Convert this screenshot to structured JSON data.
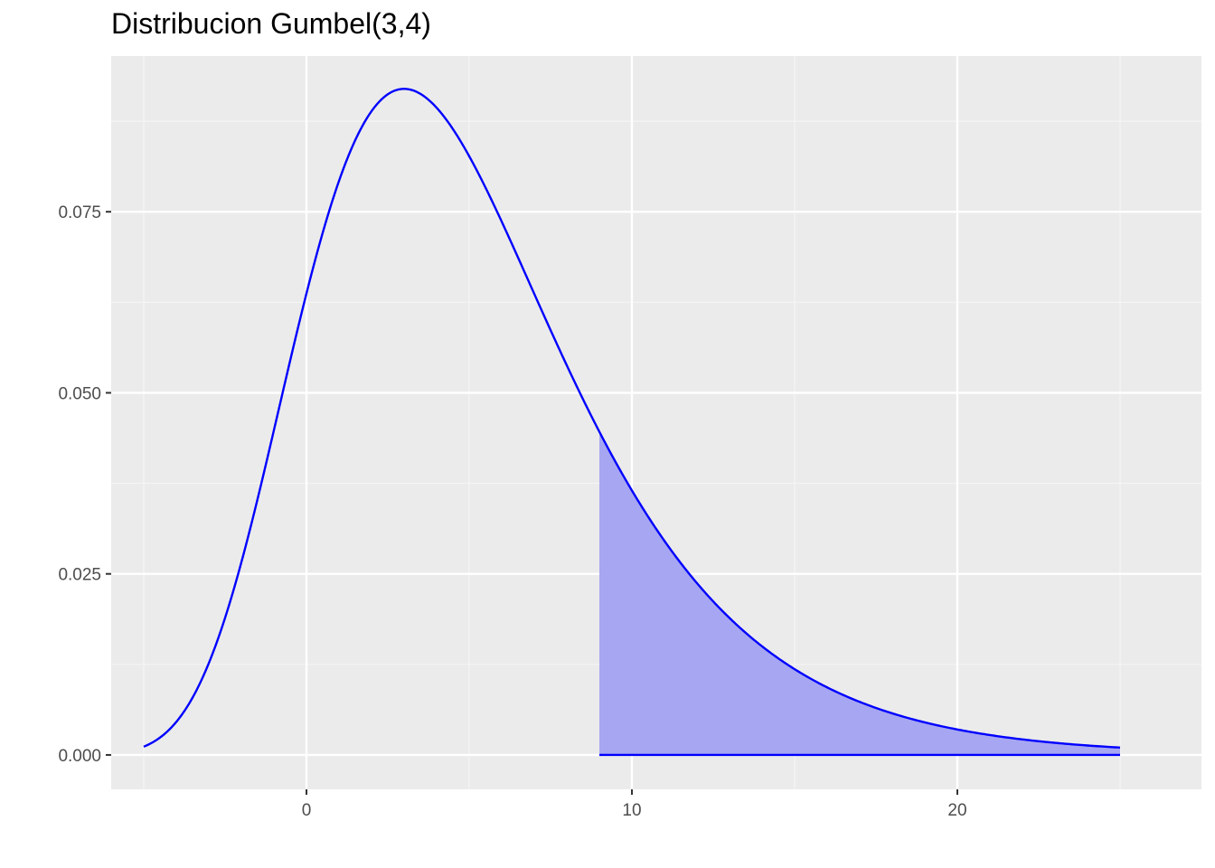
{
  "chart_data": {
    "type": "area",
    "title": "Distribucion Gumbel(3,4)",
    "xlabel": "",
    "ylabel": "",
    "xlim": [
      -6,
      27.5
    ],
    "ylim": [
      -0.00475,
      0.0965
    ],
    "x_ticks": [
      0,
      10,
      20
    ],
    "x_tick_labels": [
      "0",
      "10",
      "20"
    ],
    "y_ticks": [
      0,
      0.025,
      0.05,
      0.075
    ],
    "y_tick_labels": [
      "0.000",
      "0.025",
      "0.050",
      "0.075"
    ],
    "grid": true,
    "legend": "none",
    "distribution": {
      "name": "Gumbel",
      "location": 3,
      "scale": 4
    },
    "curve": {
      "x_range": [
        -5,
        25
      ],
      "color": "#0000ff"
    },
    "shaded_region": {
      "x_from": 9,
      "x_to": 25,
      "fill_color": "#a6a6f2"
    }
  },
  "colors": {
    "panel_background": "#ebebeb",
    "grid_major": "#ffffff",
    "grid_minor": "#f5f5f5",
    "tick_text": "#4d4d4d",
    "tick_mark": "#333333"
  }
}
